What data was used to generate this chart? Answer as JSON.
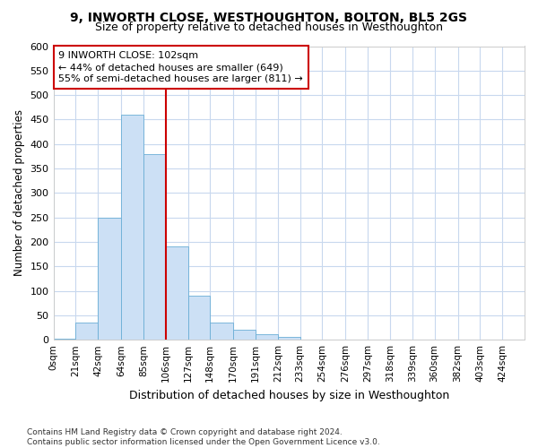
{
  "title": "9, INWORTH CLOSE, WESTHOUGHTON, BOLTON, BL5 2GS",
  "subtitle": "Size of property relative to detached houses in Westhoughton",
  "xlabel": "Distribution of detached houses by size in Westhoughton",
  "ylabel": "Number of detached properties",
  "footer_line1": "Contains HM Land Registry data © Crown copyright and database right 2024.",
  "footer_line2": "Contains public sector information licensed under the Open Government Licence v3.0.",
  "bin_labels": [
    "0sqm",
    "21sqm",
    "42sqm",
    "64sqm",
    "85sqm",
    "106sqm",
    "127sqm",
    "148sqm",
    "170sqm",
    "191sqm",
    "212sqm",
    "233sqm",
    "254sqm",
    "276sqm",
    "297sqm",
    "318sqm",
    "339sqm",
    "360sqm",
    "382sqm",
    "403sqm",
    "424sqm"
  ],
  "bin_edges": [
    0,
    21,
    42,
    64,
    85,
    106,
    127,
    148,
    170,
    191,
    212,
    233,
    254,
    276,
    297,
    318,
    339,
    360,
    382,
    403,
    424
  ],
  "bar_heights": [
    2,
    35,
    250,
    460,
    380,
    190,
    90,
    35,
    20,
    12,
    5,
    0,
    0,
    0,
    0,
    0,
    0,
    0,
    1,
    0,
    1
  ],
  "bar_color": "#cce0f5",
  "bar_edge_color": "#6aaed6",
  "grid_color": "#c8d8ee",
  "background_color": "#ffffff",
  "property_line_x": 106,
  "property_line_color": "#cc0000",
  "annotation_text_line1": "9 INWORTH CLOSE: 102sqm",
  "annotation_text_line2": "← 44% of detached houses are smaller (649)",
  "annotation_text_line3": "55% of semi-detached houses are larger (811) →",
  "annotation_box_color": "#ffffff",
  "annotation_box_edge": "#cc0000",
  "ylim": [
    0,
    600
  ],
  "yticks": [
    0,
    50,
    100,
    150,
    200,
    250,
    300,
    350,
    400,
    450,
    500,
    550,
    600
  ]
}
